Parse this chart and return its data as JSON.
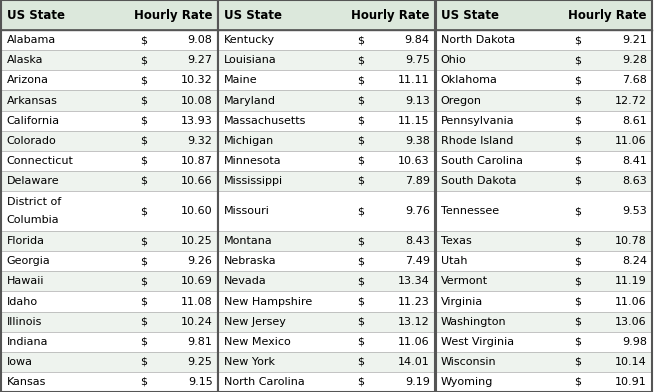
{
  "header_bg": "#dce8dc",
  "row_bg_even": "#ffffff",
  "row_bg_odd": "#eef3ee",
  "border_color": "#555555",
  "thin_border": "#aaaaaa",
  "text_color": "#000000",
  "header_font_size": 8.5,
  "cell_font_size": 8.0,
  "column1": [
    [
      "Alabama",
      9.08
    ],
    [
      "Alaska",
      9.27
    ],
    [
      "Arizona",
      10.32
    ],
    [
      "Arkansas",
      10.08
    ],
    [
      "California",
      13.93
    ],
    [
      "Colorado",
      9.32
    ],
    [
      "Connecticut",
      10.87
    ],
    [
      "Delaware",
      10.66
    ],
    [
      "District of\nColumbia",
      10.6
    ],
    [
      "Florida",
      10.25
    ],
    [
      "Georgia",
      9.26
    ],
    [
      "Hawaii",
      10.69
    ],
    [
      "Idaho",
      11.08
    ],
    [
      "Illinois",
      10.24
    ],
    [
      "Indiana",
      9.81
    ],
    [
      "Iowa",
      9.25
    ],
    [
      "Kansas",
      9.15
    ]
  ],
  "column2": [
    [
      "Kentucky",
      9.84
    ],
    [
      "Louisiana",
      9.75
    ],
    [
      "Maine",
      11.11
    ],
    [
      "Maryland",
      9.13
    ],
    [
      "Massachusetts",
      11.15
    ],
    [
      "Michigan",
      9.38
    ],
    [
      "Minnesota",
      10.63
    ],
    [
      "Mississippi",
      7.89
    ],
    [
      "Missouri",
      9.76
    ],
    [
      "Montana",
      8.43
    ],
    [
      "Nebraska",
      7.49
    ],
    [
      "Nevada",
      13.34
    ],
    [
      "New Hampshire",
      11.23
    ],
    [
      "New Jersey",
      13.12
    ],
    [
      "New Mexico",
      11.06
    ],
    [
      "New York",
      14.01
    ],
    [
      "North Carolina",
      9.19
    ]
  ],
  "column3": [
    [
      "North Dakota",
      9.21
    ],
    [
      "Ohio",
      9.28
    ],
    [
      "Oklahoma",
      7.68
    ],
    [
      "Oregon",
      12.72
    ],
    [
      "Pennsylvania",
      8.61
    ],
    [
      "Rhode Island",
      11.06
    ],
    [
      "South Carolina",
      8.41
    ],
    [
      "South Dakota",
      8.63
    ],
    [
      "Tennessee",
      9.53
    ],
    [
      "Texas",
      10.78
    ],
    [
      "Utah",
      8.24
    ],
    [
      "Vermont",
      11.19
    ],
    [
      "Virginia",
      11.06
    ],
    [
      "Washington",
      13.06
    ],
    [
      "West Virginia",
      9.98
    ],
    [
      "Wisconsin",
      10.14
    ],
    [
      "Wyoming",
      10.91
    ]
  ]
}
